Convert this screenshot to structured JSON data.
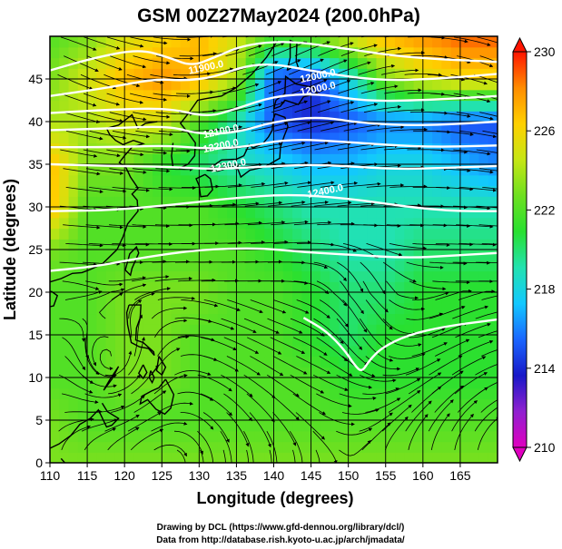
{
  "chart_data": {
    "type": "heatmap",
    "title": "GSM 00Z27May2024 (200.0hPa)",
    "xlabel": "Longitude (degrees)",
    "ylabel": "Latitude  (degrees)",
    "xlim": [
      110,
      170
    ],
    "ylim": [
      0,
      50
    ],
    "x_ticks": [
      110,
      115,
      120,
      125,
      130,
      135,
      140,
      145,
      150,
      155,
      160,
      165
    ],
    "y_ticks": [
      0,
      5,
      10,
      15,
      20,
      25,
      30,
      35,
      40,
      45
    ],
    "grid": true,
    "field": "temperature (shaded) with streamlines and geopotential height contours",
    "colorbar": {
      "position": "right",
      "min": 210,
      "max": 230,
      "ticks": [
        210,
        214,
        218,
        222,
        226,
        230
      ],
      "colors": [
        "#e000c0",
        "#9020d0",
        "#1818c8",
        "#1a66ff",
        "#12c8ff",
        "#22e2b0",
        "#28e030",
        "#6ee020",
        "#c6e614",
        "#ffd000",
        "#ff8c00",
        "#ff1400"
      ]
    },
    "sample_values": {
      "lon": [
        110,
        115,
        120,
        125,
        130,
        135,
        140,
        145,
        150,
        155,
        160,
        165,
        170
      ],
      "lat": [
        50,
        45,
        40,
        35,
        30,
        25,
        20,
        15,
        10,
        5,
        0
      ],
      "z": [
        [
          222,
          223,
          225,
          226,
          227,
          225,
          222,
          223,
          225,
          227,
          228,
          229,
          229
        ],
        [
          223,
          225,
          227,
          228,
          227,
          224,
          215,
          214,
          218,
          223,
          225,
          226,
          226
        ],
        [
          224,
          224,
          225,
          225,
          222,
          219,
          215,
          214,
          215,
          216,
          216,
          215,
          215
        ],
        [
          227,
          223,
          223,
          221,
          220,
          219,
          218,
          217,
          217,
          218,
          218,
          217,
          216
        ],
        [
          227,
          222,
          222,
          222,
          222,
          221,
          220,
          219,
          219,
          219,
          219,
          219,
          219
        ],
        [
          223,
          222,
          222,
          222,
          222,
          222,
          221,
          220,
          219,
          219,
          220,
          220,
          220
        ],
        [
          222,
          222,
          223,
          223,
          223,
          222,
          222,
          221,
          220,
          220,
          221,
          221,
          221
        ],
        [
          222,
          222,
          223,
          223,
          222,
          222,
          222,
          221,
          220,
          221,
          221,
          221,
          221
        ],
        [
          222,
          222,
          223,
          223,
          222,
          222,
          222,
          222,
          221,
          221,
          221,
          221,
          221
        ],
        [
          223,
          222,
          222,
          222,
          222,
          222,
          222,
          222,
          222,
          222,
          222,
          222,
          222
        ],
        [
          223,
          223,
          223,
          223,
          223,
          223,
          223,
          223,
          223,
          223,
          223,
          223,
          223
        ]
      ]
    },
    "contour_labels": [
      {
        "text": "11900.0",
        "lon": 131,
        "lat": 46
      },
      {
        "text": "12000.0",
        "lon": 146,
        "lat": 45
      },
      {
        "text": "12000.0",
        "lon": 146,
        "lat": 43.5
      },
      {
        "text": "12100.0",
        "lon": 133,
        "lat": 38.5
      },
      {
        "text": "12200.0",
        "lon": 133,
        "lat": 36.8
      },
      {
        "text": "12300.0",
        "lon": 134,
        "lat": 34.5
      },
      {
        "text": "12400.0",
        "lon": 147,
        "lat": 31.5
      }
    ]
  },
  "credits": [
    "Drawing by DCL (https://www.gfd-dennou.org/library/dcl/)",
    "Data from http://database.rish.kyoto-u.ac.jp/arch/jmadata/"
  ]
}
